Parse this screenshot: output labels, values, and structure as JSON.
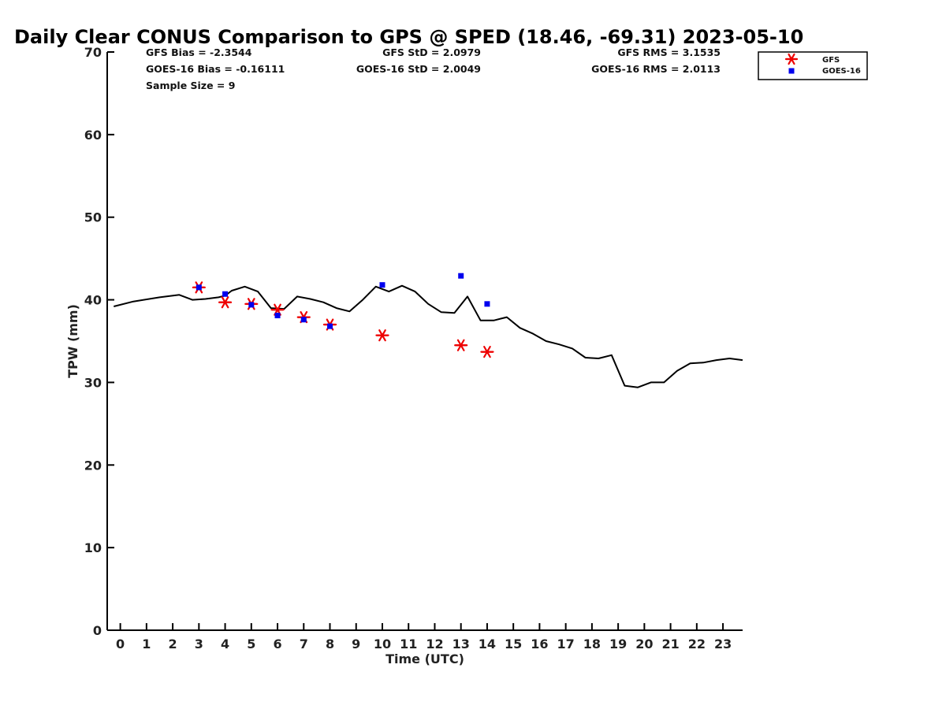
{
  "chart_data": {
    "type": "line",
    "title": "Daily Clear CONUS Comparison to GPS @ SPED (18.46, -69.31) 2023-05-10",
    "xlabel": "Time (UTC)",
    "ylabel": "TPW (mm)",
    "xlim": [
      -0.5,
      23.75
    ],
    "ylim": [
      0,
      70
    ],
    "x_ticks": [
      0,
      1,
      2,
      3,
      4,
      5,
      6,
      7,
      8,
      9,
      10,
      11,
      12,
      13,
      14,
      15,
      16,
      17,
      18,
      19,
      20,
      21,
      22,
      23
    ],
    "y_ticks": [
      0,
      10,
      20,
      30,
      40,
      50,
      60,
      70
    ],
    "grid": false,
    "legend_position": "top-right",
    "stats": {
      "gfs_bias": "GFS Bias = -2.3544",
      "gfs_std": "GFS StD = 2.0979",
      "gfs_rms": "GFS RMS = 3.1535",
      "goes_bias": "GOES-16 Bias = -0.16111",
      "goes_std": "GOES-16 StD = 2.0049",
      "goes_rms": "GOES-16 RMS = 2.0113",
      "sample_size": "Sample Size = 9"
    },
    "series": [
      {
        "kind": "line",
        "color": "#000000",
        "x": [
          -0.25,
          0.5,
          1.5,
          2.25,
          2.75,
          3.25,
          3.75,
          4.0,
          4.25,
          4.75,
          5.25,
          5.75,
          6.25,
          6.75,
          7.25,
          7.75,
          8.25,
          8.75,
          9.25,
          9.75,
          10.25,
          10.75,
          11.25,
          11.75,
          12.25,
          12.75,
          13.25,
          13.75,
          14.25,
          14.75,
          15.25,
          15.75,
          16.25,
          16.75,
          17.25,
          17.75,
          18.25,
          18.75,
          19.25,
          19.75,
          20.25,
          20.75,
          21.25,
          21.75,
          22.25,
          22.75,
          23.25,
          23.75
        ],
        "y": [
          39.2,
          39.8,
          40.3,
          40.6,
          40.0,
          40.1,
          40.3,
          40.5,
          41.1,
          41.6,
          41.0,
          39.0,
          38.9,
          40.4,
          40.1,
          39.7,
          39.0,
          38.6,
          40.0,
          41.6,
          41.0,
          41.7,
          41.0,
          39.5,
          38.5,
          38.4,
          40.4,
          37.5,
          37.5,
          37.9,
          36.6,
          35.9,
          35.0,
          34.6,
          34.1,
          33.0,
          32.9,
          33.3,
          29.6,
          29.4,
          30.0,
          30.0,
          31.4,
          32.3,
          32.4,
          32.7,
          32.9,
          32.7
        ]
      },
      {
        "name": "GFS",
        "kind": "scatter",
        "marker": "asterisk",
        "color": "#ee0000",
        "x": [
          3,
          4,
          5,
          6,
          7,
          8,
          10,
          13,
          14
        ],
        "y": [
          41.5,
          39.7,
          39.5,
          38.8,
          37.9,
          37.0,
          35.7,
          34.5,
          33.7
        ]
      },
      {
        "name": "GOES-16",
        "kind": "scatter",
        "marker": "square",
        "color": "#0000ee",
        "x": [
          3,
          4,
          5,
          6,
          7,
          8,
          10,
          13,
          14
        ],
        "y": [
          41.5,
          40.7,
          39.4,
          38.1,
          37.6,
          36.8,
          41.8,
          42.9,
          39.5
        ]
      }
    ]
  }
}
